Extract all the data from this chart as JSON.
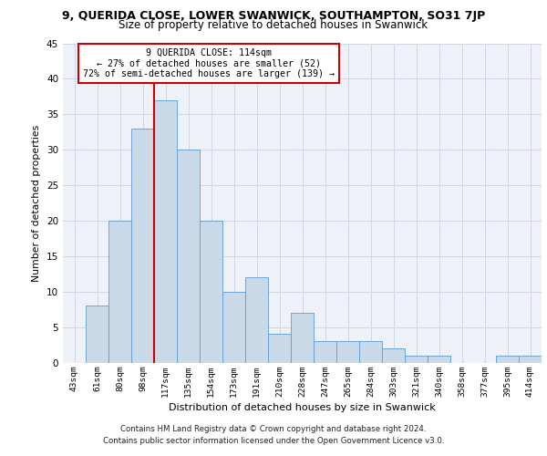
{
  "title": "9, QUERIDA CLOSE, LOWER SWANWICK, SOUTHAMPTON, SO31 7JP",
  "subtitle": "Size of property relative to detached houses in Swanwick",
  "xlabel": "Distribution of detached houses by size in Swanwick",
  "ylabel": "Number of detached properties",
  "bar_color": "#c9d9e8",
  "bar_edge_color": "#5b9bd5",
  "categories": [
    "43sqm",
    "61sqm",
    "80sqm",
    "98sqm",
    "117sqm",
    "135sqm",
    "154sqm",
    "173sqm",
    "191sqm",
    "210sqm",
    "228sqm",
    "247sqm",
    "265sqm",
    "284sqm",
    "303sqm",
    "321sqm",
    "340sqm",
    "358sqm",
    "377sqm",
    "395sqm",
    "414sqm"
  ],
  "values": [
    0,
    8,
    20,
    33,
    37,
    30,
    20,
    10,
    12,
    4,
    7,
    3,
    3,
    3,
    2,
    1,
    1,
    0,
    0,
    1,
    1
  ],
  "ylim": [
    0,
    45
  ],
  "yticks": [
    0,
    5,
    10,
    15,
    20,
    25,
    30,
    35,
    40,
    45
  ],
  "property_line_idx": 4,
  "annotation_text_line1": "9 QUERIDA CLOSE: 114sqm",
  "annotation_text_line2": "← 27% of detached houses are smaller (52)",
  "annotation_text_line3": "72% of semi-detached houses are larger (139) →",
  "annotation_box_color": "white",
  "annotation_box_edge_color": "#cc0000",
  "vline_color": "#cc0000",
  "footer_line1": "Contains HM Land Registry data © Crown copyright and database right 2024.",
  "footer_line2": "Contains public sector information licensed under the Open Government Licence v3.0.",
  "grid_color": "#d0d8e8",
  "background_color": "#eef2f8"
}
